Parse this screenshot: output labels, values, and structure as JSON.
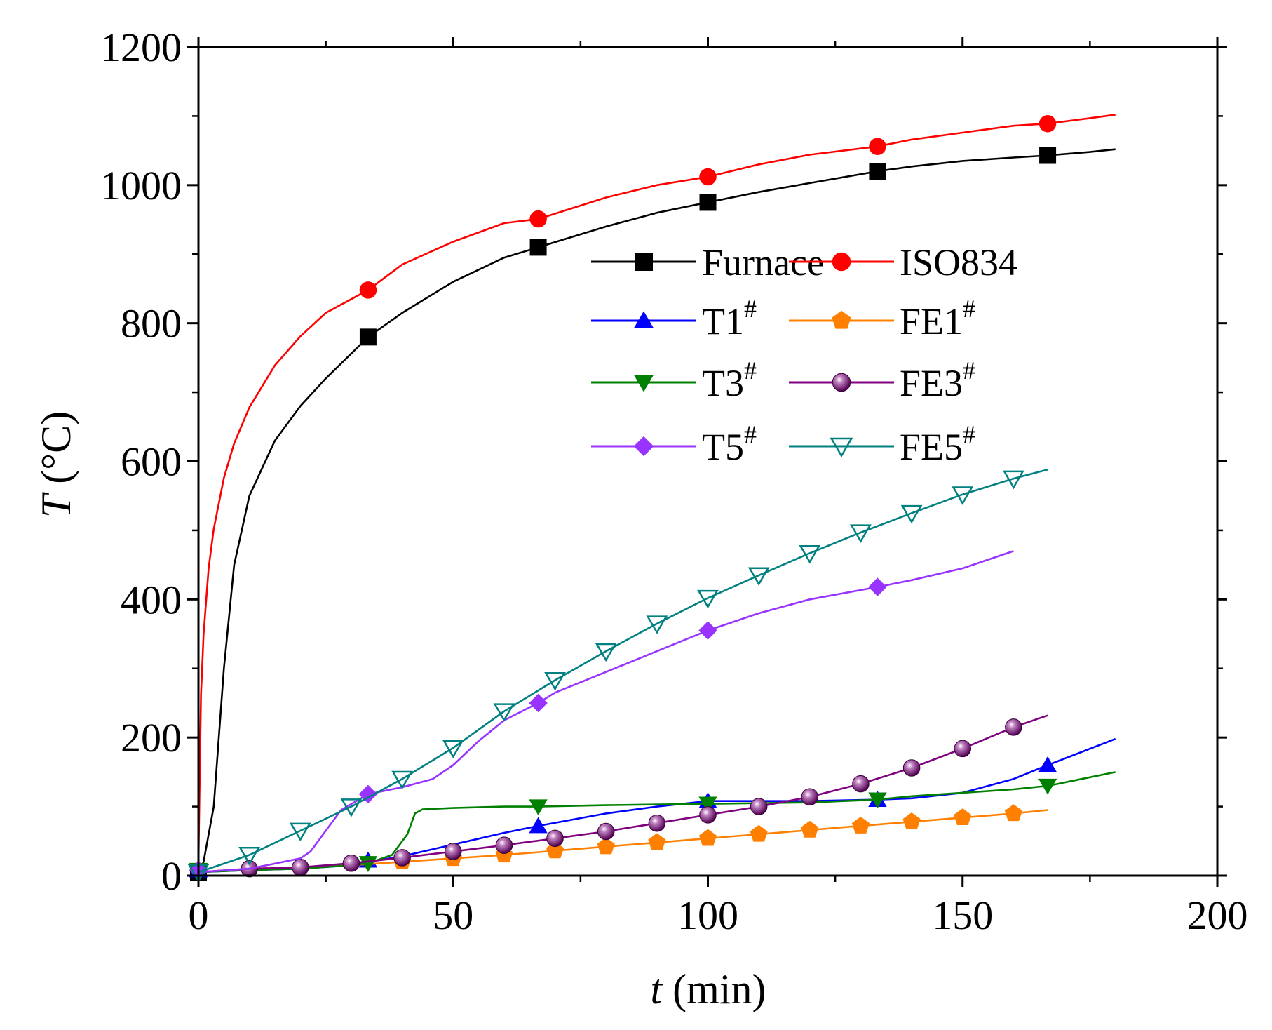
{
  "chart_data": {
    "type": "line",
    "xlabel": {
      "symbol": "t",
      "unit": " (min)"
    },
    "ylabel": {
      "symbol": "T",
      "unit": " (°C)"
    },
    "xlim": [
      0,
      200
    ],
    "ylim": [
      0,
      1200
    ],
    "x_ticks": [
      "0",
      "50",
      "100",
      "150",
      "200"
    ],
    "y_ticks": [
      "0",
      "200",
      "400",
      "600",
      "800",
      "1000",
      "1200"
    ],
    "grid": false,
    "legend_position": "center-right",
    "series": [
      {
        "name": "Furnace",
        "sup": "",
        "color": "#000000",
        "marker": "square",
        "x": [
          0,
          1,
          3,
          5,
          7,
          10,
          15,
          20,
          25,
          33.3,
          40,
          50,
          60,
          66.7,
          80,
          90,
          100,
          110,
          120,
          133.3,
          140,
          150,
          160,
          166.7,
          175,
          180
        ],
        "y": [
          0,
          20,
          100,
          300,
          450,
          550,
          630,
          680,
          720,
          780,
          815,
          860,
          895,
          910,
          940,
          960,
          975,
          990,
          1003,
          1020,
          1027,
          1035,
          1040,
          1043,
          1048,
          1052
        ],
        "marker_x": [
          0,
          33.3,
          66.7,
          100,
          133.3,
          166.7
        ],
        "marker_y": [
          5,
          780,
          910,
          975,
          1020,
          1043
        ]
      },
      {
        "name": "ISO834",
        "sup": "",
        "color": "#ff0000",
        "marker": "circle",
        "x": [
          0,
          0.5,
          1,
          2,
          3,
          5,
          7,
          10,
          15,
          20,
          25,
          33.3,
          40,
          50,
          60,
          66.7,
          80,
          90,
          100,
          110,
          120,
          133.3,
          140,
          150,
          160,
          166.7,
          175,
          180
        ],
        "y": [
          20,
          261,
          349,
          445,
          502,
          576,
          626,
          678,
          739,
          781,
          815,
          848,
          885,
          918,
          945,
          951,
          982,
          1000,
          1012,
          1030,
          1044,
          1056,
          1066,
          1076,
          1086,
          1089,
          1097,
          1102
        ],
        "marker_x": [
          33.3,
          66.7,
          100,
          133.3,
          166.7
        ],
        "marker_y": [
          848,
          951,
          1012,
          1056,
          1089
        ]
      },
      {
        "name": "T1",
        "sup": "#",
        "color": "#0000ff",
        "marker": "triangle-up",
        "x": [
          0,
          10,
          20,
          30,
          33.3,
          40,
          50,
          60,
          66.7,
          80,
          90,
          100,
          110,
          120,
          133.3,
          140,
          150,
          160,
          166.7,
          180
        ],
        "y": [
          5,
          8,
          10,
          15,
          20,
          28,
          45,
          62,
          72,
          90,
          100,
          108,
          108,
          108,
          110,
          112,
          120,
          140,
          160,
          198
        ],
        "marker_x": [
          0,
          33.3,
          66.7,
          100,
          133.3,
          166.7
        ],
        "marker_y": [
          8,
          22,
          72,
          108,
          110,
          160
        ]
      },
      {
        "name": "FE1",
        "sup": "#",
        "color": "#ff8000",
        "marker": "pentagon",
        "x": [
          0,
          10,
          20,
          30,
          40,
          50,
          60,
          70,
          80,
          90,
          100,
          110,
          120,
          130,
          140,
          150,
          160,
          166.7
        ],
        "y": [
          5,
          10,
          12,
          15,
          20,
          25,
          30,
          36,
          42,
          48,
          54,
          60,
          66,
          72,
          78,
          84,
          90,
          95
        ],
        "marker_x": [
          40,
          50,
          60,
          70,
          80,
          90,
          100,
          110,
          120,
          130,
          140,
          150,
          160
        ],
        "marker_y": [
          20,
          25,
          30,
          36,
          42,
          48,
          54,
          60,
          66,
          72,
          78,
          84,
          90
        ]
      },
      {
        "name": "T3",
        "sup": "#",
        "color": "#008000",
        "marker": "triangle-down",
        "x": [
          0,
          10,
          20,
          30,
          33.3,
          38,
          41,
          42.5,
          44,
          50,
          60,
          66.7,
          80,
          100,
          110,
          120,
          133.3,
          140,
          150,
          160,
          166.7,
          180
        ],
        "y": [
          5,
          8,
          10,
          15,
          18,
          30,
          60,
          90,
          96,
          98,
          100,
          100,
          102,
          104,
          105,
          106,
          110,
          115,
          120,
          125,
          130,
          150
        ],
        "marker_x": [
          0,
          33.3,
          66.7,
          100,
          133.3,
          166.7
        ],
        "marker_y": [
          8,
          18,
          100,
          104,
          110,
          130
        ]
      },
      {
        "name": "FE3",
        "sup": "#",
        "color": "#800080",
        "marker": "sphere",
        "x": [
          0,
          10,
          20,
          30,
          40,
          50,
          60,
          70,
          80,
          90,
          100,
          110,
          120,
          130,
          140,
          150,
          160,
          166.7
        ],
        "y": [
          5,
          10,
          12,
          18,
          26,
          35,
          44,
          54,
          64,
          76,
          88,
          100,
          114,
          133,
          156,
          184,
          215,
          232
        ],
        "marker_x": [
          10,
          20,
          30,
          40,
          50,
          60,
          70,
          80,
          90,
          100,
          110,
          120,
          130,
          140,
          150,
          160
        ],
        "marker_y": [
          10,
          12,
          18,
          26,
          35,
          44,
          54,
          64,
          76,
          88,
          100,
          114,
          133,
          156,
          184,
          215
        ]
      },
      {
        "name": "T5",
        "sup": "#",
        "color": "#9933ff",
        "marker": "diamond",
        "x": [
          0,
          10,
          20,
          22,
          25,
          28,
          33.3,
          40,
          46,
          50,
          55,
          60,
          66.7,
          70,
          80,
          90,
          100,
          110,
          120,
          133.3,
          140,
          150,
          160
        ],
        "y": [
          5,
          10,
          25,
          35,
          65,
          95,
          118,
          128,
          140,
          160,
          195,
          225,
          250,
          265,
          295,
          325,
          355,
          380,
          400,
          418,
          428,
          445,
          470
        ],
        "marker_x": [
          0,
          33.3,
          66.7,
          100,
          133.3
        ],
        "marker_y": [
          8,
          118,
          250,
          355,
          418
        ]
      },
      {
        "name": "FE5",
        "sup": "#",
        "color": "#008080",
        "marker": "triangle-down-open",
        "x": [
          0,
          10,
          20,
          30,
          40,
          50,
          60,
          70,
          80,
          90,
          100,
          110,
          120,
          130,
          140,
          150,
          160,
          166.7
        ],
        "y": [
          5,
          30,
          65,
          100,
          140,
          185,
          238,
          283,
          325,
          365,
          402,
          435,
          467,
          497,
          525,
          552,
          575,
          588
        ],
        "marker_x": [
          0,
          10,
          20,
          30,
          40,
          50,
          60,
          70,
          80,
          90,
          100,
          110,
          120,
          130,
          140,
          150,
          160
        ],
        "marker_y": [
          5,
          30,
          65,
          100,
          140,
          185,
          238,
          283,
          325,
          365,
          402,
          435,
          467,
          497,
          525,
          552,
          575
        ]
      }
    ]
  }
}
